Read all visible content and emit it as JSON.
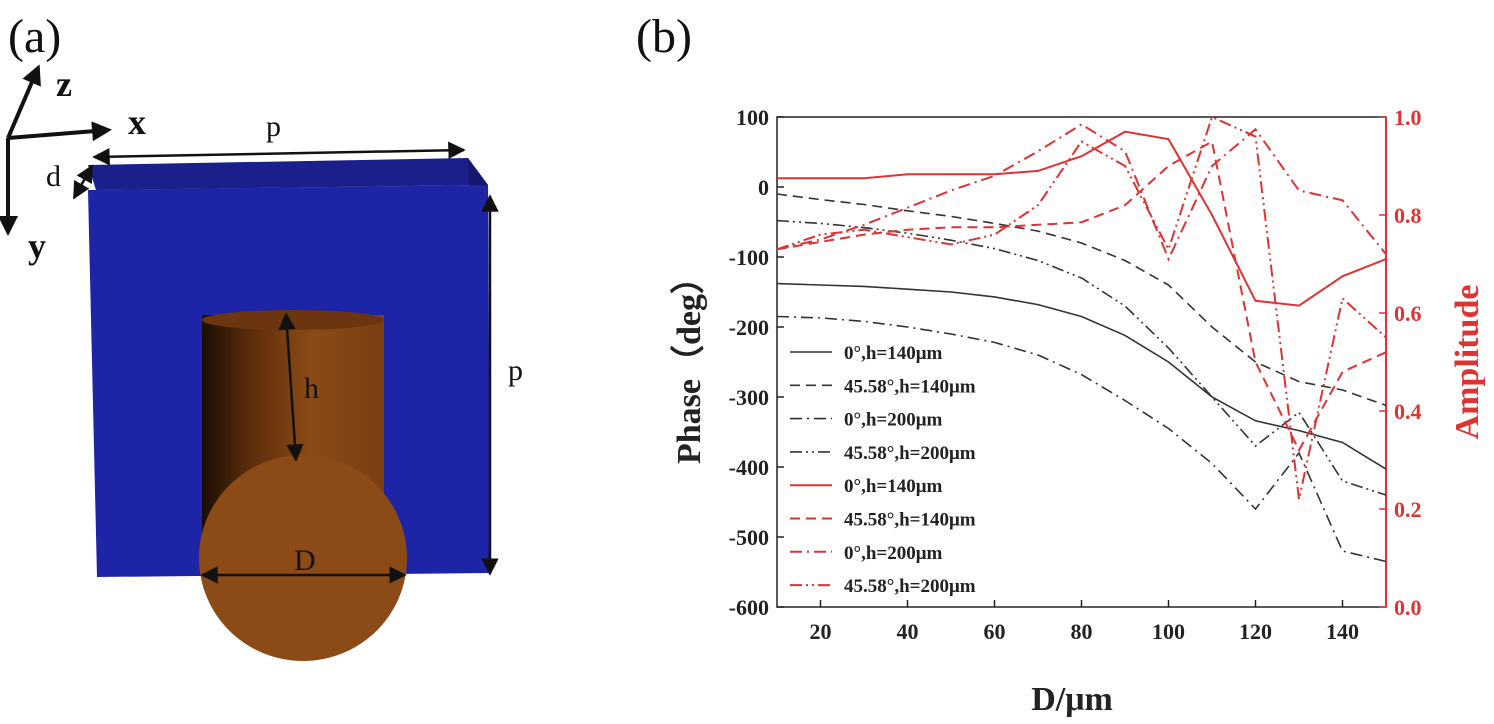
{
  "panel_a": {
    "label": "(a)",
    "axes": {
      "z": "z",
      "x": "x",
      "y": "y"
    },
    "dims": {
      "p_top": "p",
      "p_right": "p",
      "d": "d",
      "h": "h",
      "D": "D"
    },
    "colors": {
      "substrate": "#1e24a6",
      "cylinder": "#8b4a16"
    }
  },
  "panel_b": {
    "label": "(b)"
  },
  "chart_data": {
    "type": "line",
    "xlabel": "D/μm",
    "ylabel_left": "Phase（deg）",
    "ylabel_right": "Amplitude",
    "xlim": [
      10,
      150
    ],
    "ylim_left": [
      -600,
      100
    ],
    "ylim_right": [
      0.0,
      1.0
    ],
    "xticks": [
      "20",
      "40",
      "60",
      "80",
      "100",
      "120",
      "140"
    ],
    "yticks_left": [
      "100",
      "0",
      "-100",
      "-200",
      "-300",
      "-400",
      "-500",
      "-600"
    ],
    "yticks_right": [
      "1.0",
      "0.8",
      "0.6",
      "0.4",
      "0.2",
      "0.0"
    ],
    "legend_position": "left",
    "x": [
      10,
      20,
      30,
      40,
      50,
      60,
      70,
      80,
      90,
      100,
      110,
      120,
      130,
      140,
      150
    ],
    "series": [
      {
        "name": "0°,h=140μm",
        "axis": "left",
        "color": "#333333",
        "dash": "solid",
        "values": [
          -138,
          -140,
          -142,
          -146,
          -150,
          -157,
          -168,
          -185,
          -212,
          -250,
          -300,
          -334,
          -348,
          -365,
          -403
        ]
      },
      {
        "name": "45.58°,h=140μm",
        "axis": "left",
        "color": "#333333",
        "dash": "dash",
        "values": [
          -10,
          -18,
          -25,
          -34,
          -42,
          -52,
          -63,
          -80,
          -105,
          -140,
          -200,
          -250,
          -278,
          -290,
          -312
        ]
      },
      {
        "name": "0°,h=200μm",
        "axis": "left",
        "color": "#333333",
        "dash": "dashdot",
        "values": [
          -185,
          -187,
          -192,
          -200,
          -210,
          -222,
          -240,
          -268,
          -305,
          -345,
          -395,
          -460,
          -380,
          -520,
          -535
        ]
      },
      {
        "name": "45.58°,h=200μm",
        "axis": "left",
        "color": "#333333",
        "dash": "dashdotdot",
        "values": [
          -48,
          -52,
          -58,
          -66,
          -76,
          -88,
          -105,
          -130,
          -170,
          -230,
          -300,
          -370,
          -322,
          -420,
          -440
        ]
      },
      {
        "name": "0°,h=140μm",
        "axis": "right",
        "color": "#dd3333",
        "dash": "solid",
        "values": [
          0.875,
          0.875,
          0.875,
          0.883,
          0.883,
          0.883,
          0.89,
          0.92,
          0.97,
          0.955,
          0.8,
          0.625,
          0.615,
          0.675,
          0.71
        ]
      },
      {
        "name": "45.58°,h=140μm",
        "axis": "right",
        "color": "#dd3333",
        "dash": "dash",
        "values": [
          0.73,
          0.745,
          0.76,
          0.77,
          0.775,
          0.775,
          0.78,
          0.785,
          0.82,
          0.9,
          0.95,
          0.5,
          0.32,
          0.48,
          0.52
        ]
      },
      {
        "name": "0°,h=200μm",
        "axis": "right",
        "color": "#dd3333",
        "dash": "dashdot",
        "values": [
          0.73,
          0.75,
          0.78,
          0.815,
          0.85,
          0.88,
          0.93,
          0.985,
          0.93,
          0.71,
          0.9,
          0.975,
          0.85,
          0.83,
          0.72
        ]
      },
      {
        "name": "45.58°,h=200μm",
        "axis": "right",
        "color": "#dd3333",
        "dash": "dashdotdot",
        "values": [
          0.73,
          0.76,
          0.77,
          0.755,
          0.74,
          0.76,
          0.82,
          0.95,
          0.9,
          0.73,
          1.0,
          0.96,
          0.22,
          0.63,
          0.55
        ]
      }
    ]
  }
}
